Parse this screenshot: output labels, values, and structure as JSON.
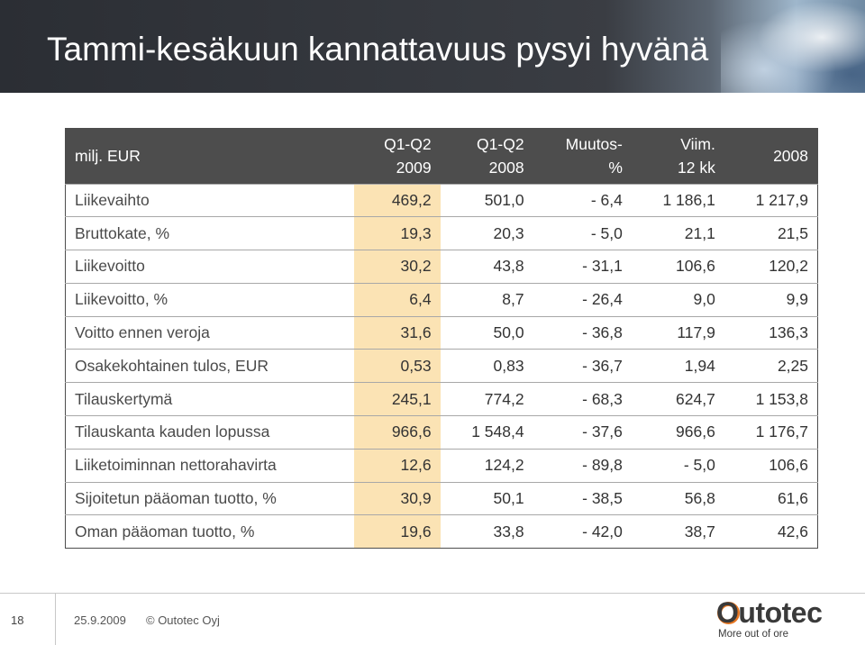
{
  "slide": {
    "title": "Tammi-kesäkuun kannattavuus pysyi hyvänä"
  },
  "table": {
    "headers": [
      {
        "line1": "milj. EUR",
        "line2": ""
      },
      {
        "line1": "Q1-Q2",
        "line2": "2009"
      },
      {
        "line1": "Q1-Q2",
        "line2": "2008"
      },
      {
        "line1": "Muutos-",
        "line2": "%"
      },
      {
        "line1": "Viim.",
        "line2": "12 kk"
      },
      {
        "line1": "",
        "line2": "2008"
      }
    ],
    "rows": [
      {
        "label": "Liikevaihto",
        "values": [
          "469,2",
          "501,0",
          "- 6,4",
          "1 186,1",
          "1 217,9"
        ]
      },
      {
        "label": "Bruttokate, %",
        "values": [
          "19,3",
          "20,3",
          "- 5,0",
          "21,1",
          "21,5"
        ]
      },
      {
        "label": "Liikevoitto",
        "values": [
          "30,2",
          "43,8",
          "- 31,1",
          "106,6",
          "120,2"
        ]
      },
      {
        "label": "Liikevoitto, %",
        "values": [
          "6,4",
          "8,7",
          "- 26,4",
          "9,0",
          "9,9"
        ]
      },
      {
        "label": "Voitto ennen veroja",
        "values": [
          "31,6",
          "50,0",
          "- 36,8",
          "117,9",
          "136,3"
        ]
      },
      {
        "label": "Osakekohtainen tulos, EUR",
        "values": [
          "0,53",
          "0,83",
          "- 36,7",
          "1,94",
          "2,25"
        ]
      },
      {
        "label": "Tilauskertymä",
        "values": [
          "245,1",
          "774,2",
          "- 68,3",
          "624,7",
          "1 153,8"
        ]
      },
      {
        "label": "Tilauskanta kauden lopussa",
        "values": [
          "966,6",
          "1 548,4",
          "- 37,6",
          "966,6",
          "1 176,7"
        ]
      },
      {
        "label": "Liiketoiminnan nettorahavirta",
        "values": [
          "12,6",
          "124,2",
          "- 89,8",
          "- 5,0",
          "106,6"
        ]
      },
      {
        "label": "Sijoitetun pääoman tuotto, %",
        "values": [
          "30,9",
          "50,1",
          "- 38,5",
          "56,8",
          "61,6"
        ]
      },
      {
        "label": "Oman pääoman tuotto, %",
        "values": [
          "19,6",
          "33,8",
          "- 42,0",
          "38,7",
          "42,6"
        ]
      }
    ]
  },
  "footer": {
    "page_number": "18",
    "date": "25.9.2009",
    "copyright": "© Outotec Oyj"
  },
  "logo": {
    "name": "Outotec",
    "tagline": "More out of ore",
    "accent_color": "#e87722"
  }
}
